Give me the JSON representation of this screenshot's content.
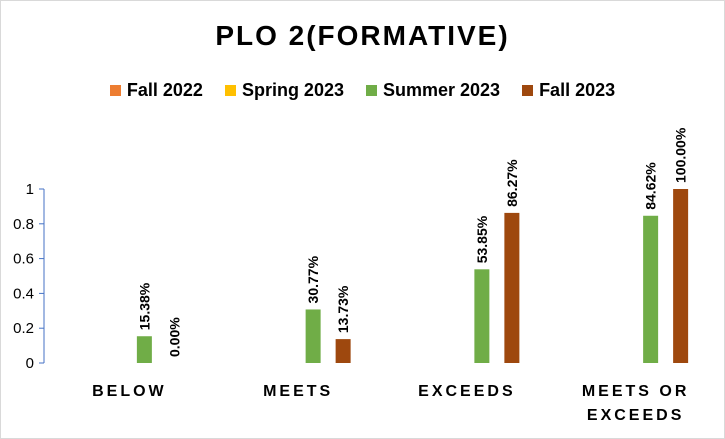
{
  "chart_data": {
    "type": "bar",
    "title": "PLO 2(FORMATIVE)",
    "categories": [
      [
        "BELOW"
      ],
      [
        "MEETS"
      ],
      [
        "EXCEEDS"
      ],
      [
        "MEETS OR",
        "EXCEEDS"
      ]
    ],
    "series": [
      {
        "name": "Fall 2022",
        "color": "#ED7D31",
        "values": [
          null,
          null,
          null,
          null
        ],
        "labels": [
          "",
          "",
          "",
          ""
        ]
      },
      {
        "name": "Spring 2023",
        "color": "#FFC000",
        "values": [
          null,
          null,
          null,
          null
        ],
        "labels": [
          "",
          "",
          "",
          ""
        ]
      },
      {
        "name": "Summer 2023",
        "color": "#70AD47",
        "values": [
          0.1538,
          0.3077,
          0.5385,
          0.8462
        ],
        "labels": [
          "15.38%",
          "30.77%",
          "53.85%",
          "84.62%"
        ]
      },
      {
        "name": "Fall 2023",
        "color": "#9E480E",
        "values": [
          0.0,
          0.1373,
          0.8627,
          1.0
        ],
        "labels": [
          "0.00%",
          "13.73%",
          "86.27%",
          "100.00%"
        ]
      }
    ],
    "yticks": [
      "0",
      "0.2",
      "0.4",
      "0.6",
      "0.8",
      "1"
    ],
    "ylim": [
      0,
      1
    ],
    "grid": false,
    "legend_position": "top"
  }
}
